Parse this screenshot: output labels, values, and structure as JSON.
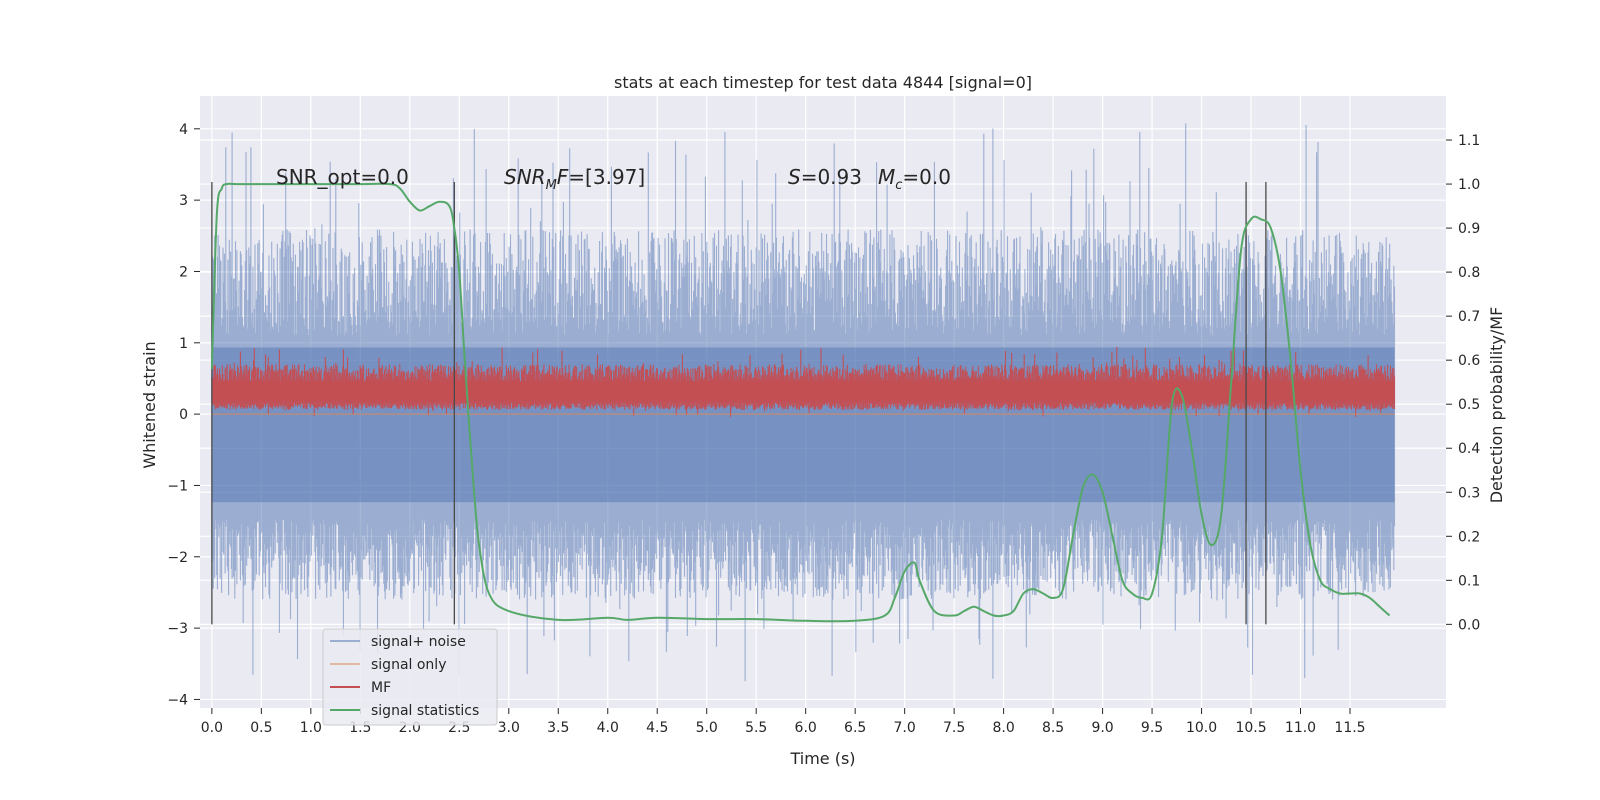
{
  "chart_data": {
    "type": "line",
    "title": "stats at each timestep for test data 4844 [signal=0]",
    "xlabel": "Time (s)",
    "ylabel": "Whitened strain",
    "y2label": "Detection probability/MF",
    "xlim": [
      -0.12,
      12.47
    ],
    "ylim": [
      -4.12,
      4.46
    ],
    "y2lim": [
      -0.19,
      1.2
    ],
    "x_ticks": [
      "0.0",
      "0.5",
      "1.0",
      "1.5",
      "2.0",
      "2.5",
      "3.0",
      "3.5",
      "4.0",
      "4.5",
      "5.0",
      "5.5",
      "6.0",
      "6.5",
      "7.0",
      "7.5",
      "8.0",
      "8.5",
      "9.0",
      "9.5",
      "10.0",
      "10.5",
      "11.0",
      "11.5"
    ],
    "y_ticks": [
      "4",
      "3",
      "2",
      "1",
      "0",
      "−1",
      "−2",
      "−3",
      "−4"
    ],
    "y2_ticks": [
      "1.1",
      "1.0",
      "0.9",
      "0.8",
      "0.7",
      "0.6",
      "0.5",
      "0.4",
      "0.3",
      "0.2",
      "0.1",
      "0.0"
    ],
    "grid": true,
    "legend_position": "lower-left",
    "annotations": {
      "snr_opt": "SNR_opt=0.0",
      "snr_mf_italic": "SNR",
      "snr_mf_sub": "M",
      "snr_mf_italic2": "F",
      "snr_mf_rest": "=[3.97]",
      "s_italic": "S",
      "s_rest": "=0.93",
      "mc_italic": "M",
      "mc_sub": "c",
      "mc_rest": "=0.0"
    },
    "series": [
      {
        "name": "signal+ noise",
        "color": "#4c72b0",
        "style": "noise-band",
        "x_range": [
          0.0,
          11.95
        ],
        "core_range": [
          -1.7,
          1.4
        ],
        "peak_max": 4.1,
        "peak_min": -3.75
      },
      {
        "name": "signal only",
        "color": "#dd8452",
        "style": "flat",
        "x_range": [
          0.0,
          11.95
        ],
        "value": 0.0
      },
      {
        "name": "MF",
        "color": "#c44e52",
        "style": "noise-band",
        "x_range": [
          0.0,
          11.95
        ],
        "axis": "y2",
        "core_range": [
          0.5,
          0.56
        ],
        "peak_max": 0.63,
        "peak_min": 0.47
      },
      {
        "name": "signal statistics",
        "color": "#55a868",
        "axis": "y2",
        "x": [
          0.0,
          0.05,
          0.1,
          0.15,
          0.25,
          0.5,
          1.0,
          1.5,
          1.8,
          1.9,
          2.0,
          2.1,
          2.2,
          2.3,
          2.4,
          2.45,
          2.5,
          2.55,
          2.6,
          2.65,
          2.7,
          2.8,
          3.0,
          3.5,
          4.0,
          4.2,
          4.5,
          5.0,
          5.5,
          6.0,
          6.5,
          6.8,
          6.9,
          7.0,
          7.1,
          7.15,
          7.3,
          7.5,
          7.6,
          7.7,
          7.8,
          7.9,
          8.0,
          8.1,
          8.2,
          8.3,
          8.4,
          8.5,
          8.6,
          8.7,
          8.8,
          8.9,
          9.0,
          9.1,
          9.2,
          9.3,
          9.4,
          9.5,
          9.6,
          9.7,
          9.8,
          9.9,
          10.0,
          10.1,
          10.2,
          10.3,
          10.4,
          10.5,
          10.6,
          10.7,
          10.8,
          10.9,
          11.0,
          11.1,
          11.2,
          11.3,
          11.4,
          11.5,
          11.6,
          11.7,
          11.8,
          11.9
        ],
        "y": [
          0.58,
          0.93,
          0.99,
          1.0,
          1.0,
          1.0,
          1.0,
          1.0,
          1.0,
          0.99,
          0.96,
          0.94,
          0.95,
          0.96,
          0.95,
          0.9,
          0.8,
          0.62,
          0.45,
          0.3,
          0.18,
          0.07,
          0.03,
          0.01,
          0.015,
          0.01,
          0.015,
          0.012,
          0.012,
          0.008,
          0.008,
          0.02,
          0.06,
          0.12,
          0.14,
          0.1,
          0.03,
          0.02,
          0.03,
          0.04,
          0.03,
          0.02,
          0.02,
          0.03,
          0.07,
          0.08,
          0.07,
          0.06,
          0.08,
          0.2,
          0.31,
          0.34,
          0.3,
          0.2,
          0.1,
          0.07,
          0.06,
          0.07,
          0.2,
          0.5,
          0.52,
          0.4,
          0.25,
          0.18,
          0.25,
          0.55,
          0.85,
          0.92,
          0.92,
          0.9,
          0.8,
          0.6,
          0.35,
          0.18,
          0.1,
          0.08,
          0.07,
          0.07,
          0.07,
          0.06,
          0.04,
          0.02
        ]
      }
    ],
    "vertical_markers": [
      0.0,
      2.45,
      10.45,
      10.65
    ]
  }
}
